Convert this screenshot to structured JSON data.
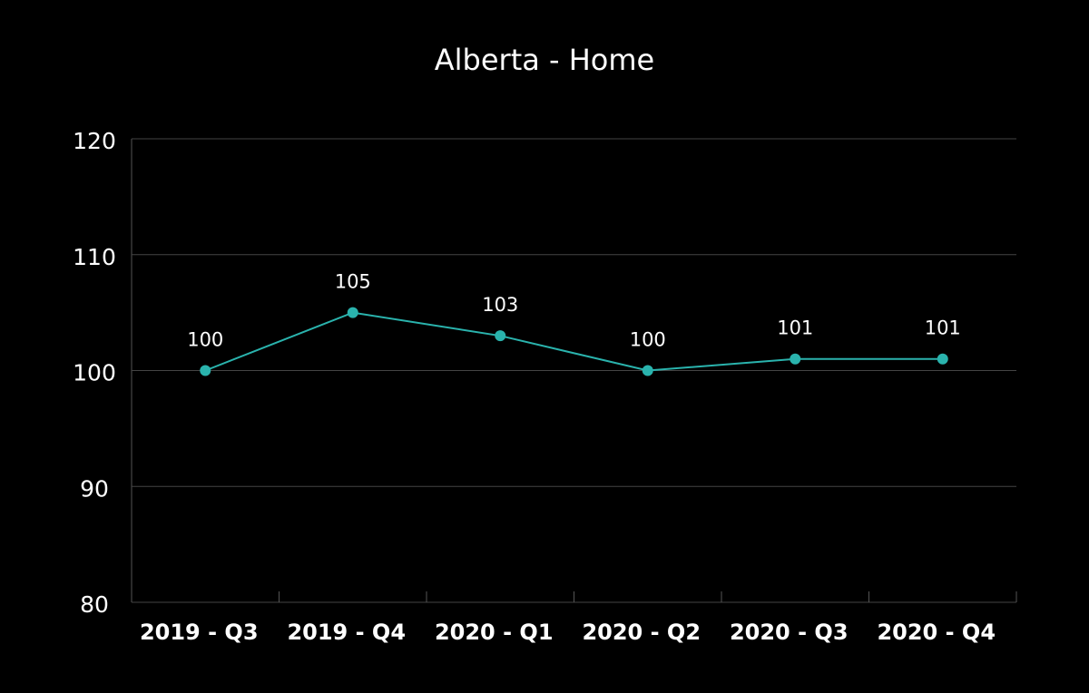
{
  "chart_data": {
    "type": "line",
    "title": "Alberta - Home",
    "categories": [
      "2019 - Q3",
      "2019 - Q4",
      "2020 - Q1",
      "2020 - Q2",
      "2020 - Q3",
      "2020 - Q4"
    ],
    "values": [
      100,
      105,
      103,
      100,
      101,
      101
    ],
    "color": "#2ab3ad",
    "ylim": [
      80,
      120
    ],
    "yticks": [
      80,
      90,
      100,
      110,
      120
    ],
    "grid": true,
    "data_labels": true
  }
}
